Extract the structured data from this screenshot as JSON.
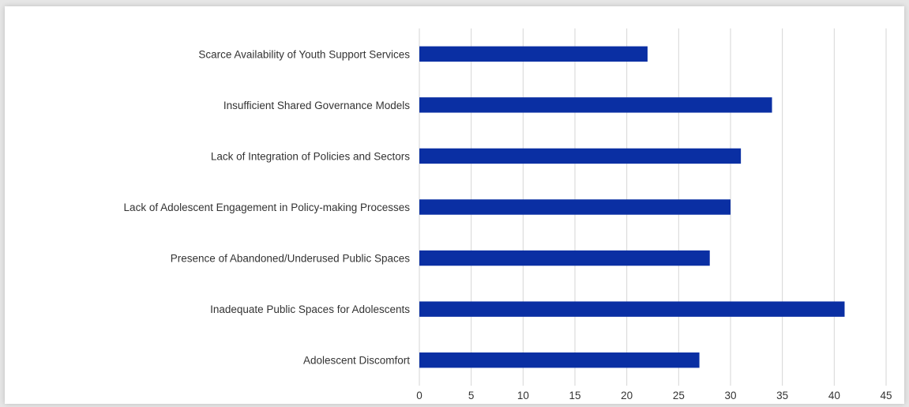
{
  "chart_data": {
    "type": "bar",
    "orientation": "horizontal",
    "title": "",
    "xlabel": "",
    "ylabel": "",
    "categories": [
      "Scarce Availability of Youth Support Services",
      "Insufficient Shared Governance Models",
      "Lack of Integration of Policies and Sectors",
      "Lack of Adolescent Engagement in Policy-making Processes",
      "Presence of Abandoned/Underused Public Spaces",
      "Inadequate Public Spaces for Adolescents",
      "Adolescent Discomfort"
    ],
    "values": [
      22,
      34,
      31,
      30,
      28,
      41,
      27
    ],
    "xlim": [
      0,
      45
    ],
    "xticks": [
      "0",
      "5",
      "10",
      "15",
      "20",
      "25",
      "30",
      "35",
      "40",
      "45"
    ],
    "grid": "vertical",
    "legend": "none",
    "bar_color": "#0a2fa3"
  }
}
